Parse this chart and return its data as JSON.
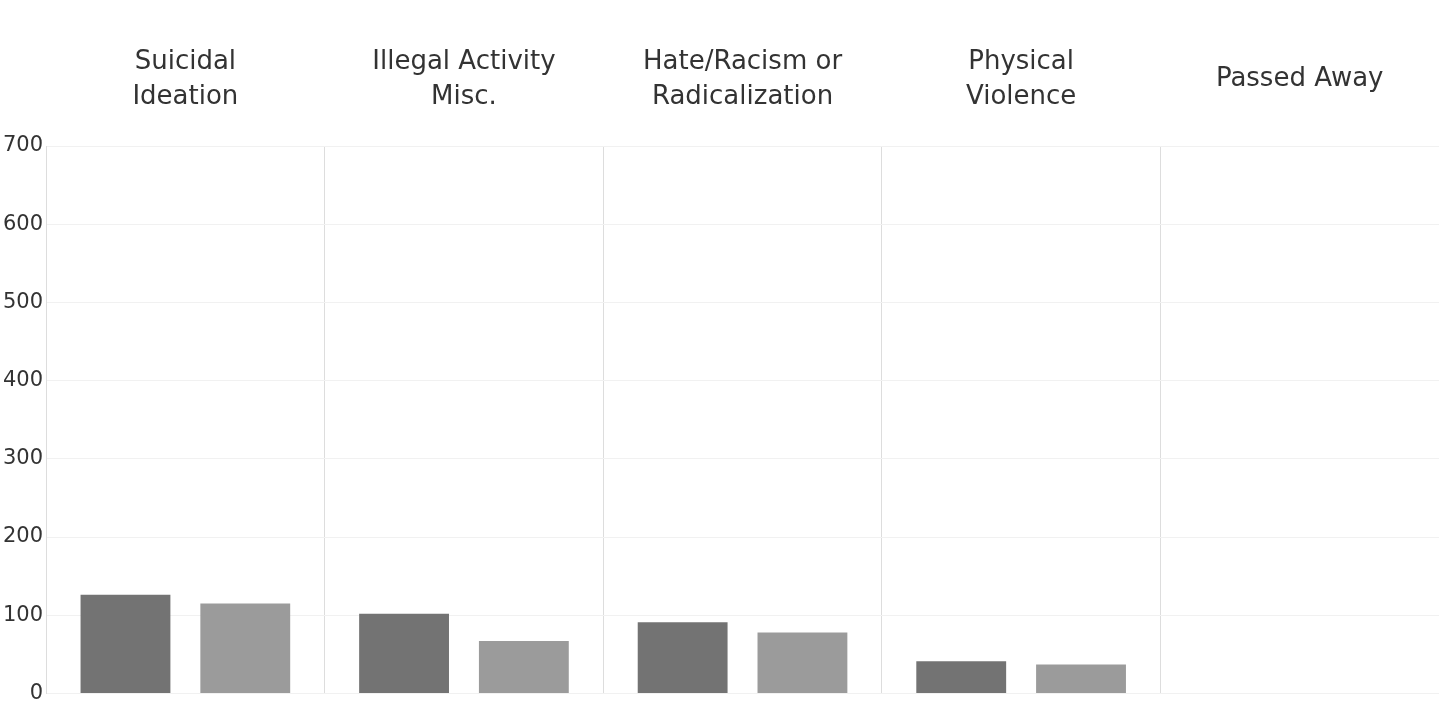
{
  "chart_data": {
    "type": "bar",
    "categories": [
      "Suicidal Ideation",
      "Illegal Activity Misc.",
      "Hate/Racism or Radicalization",
      "Physical Violence",
      "Passed Away"
    ],
    "series": [
      {
        "color": "#737373",
        "values": [
          126,
          102,
          91,
          41,
          null
        ]
      },
      {
        "color": "#9b9b9b",
        "values": [
          115,
          67,
          78,
          37,
          null
        ]
      }
    ],
    "ylim": [
      0,
      700
    ],
    "yticks": [
      0,
      100,
      200,
      300,
      400,
      500,
      600,
      700
    ],
    "grid": true,
    "legend": false
  }
}
